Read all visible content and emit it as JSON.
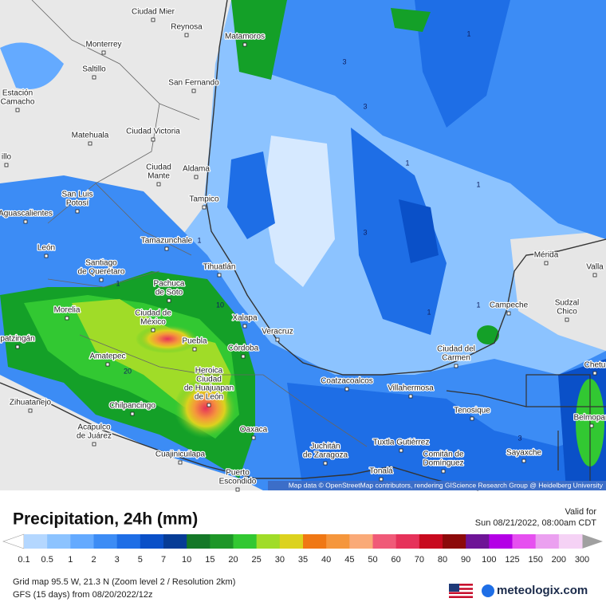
{
  "map": {
    "attribution": "Map data © OpenStreetMap contributors, rendering GIScience Research Group @ Heidelberg University",
    "cities": [
      [
        "Ciudad Mier"
      ],
      [
        "Reynosa"
      ],
      [
        "Matamoros"
      ],
      [
        "Monterrey"
      ],
      [
        "Saltillo"
      ],
      [
        "San Fernando"
      ],
      [
        "Estación",
        "Camacho"
      ],
      [
        "Matehuala"
      ],
      [
        "Ciudad Victoria"
      ],
      [
        "Ciudad",
        "Mante"
      ],
      [
        "Aldama"
      ],
      [
        "illo"
      ],
      [
        "San Luis",
        "Potosí"
      ],
      [
        "Tampico"
      ],
      [
        "Aguascalientes"
      ],
      [
        "Tamazunchale"
      ],
      [
        "León"
      ],
      [
        "Santiago",
        "de Querétaro"
      ],
      [
        "Tihuatlán"
      ],
      [
        "Pachuca",
        "de Soto"
      ],
      [
        "Mérida"
      ],
      [
        "Valla"
      ],
      [
        "Campeche"
      ],
      [
        "Sudzal",
        "Chico"
      ],
      [
        "Morelia"
      ],
      [
        "Ciudad de",
        "México"
      ],
      [
        "Xalapa"
      ],
      [
        "Veracruz"
      ],
      [
        "patzingán"
      ],
      [
        "Puebla"
      ],
      [
        "Córdoba"
      ],
      [
        "Amatepec"
      ],
      [
        "Ciudad del",
        "Carmen"
      ],
      [
        "Heroica",
        "Ciudad",
        "de Huajuapan",
        "de León"
      ],
      [
        "Coatzacoalcos"
      ],
      [
        "Villahermosa"
      ],
      [
        "Chetu"
      ],
      [
        "Zihuatanejo"
      ],
      [
        "Chilpancingo"
      ],
      [
        "Tenosique"
      ],
      [
        "Belmopan"
      ],
      [
        "Acapulco",
        "de Juárez"
      ],
      [
        "Oaxaca"
      ],
      [
        "Juchitán",
        "de Zaragoza"
      ],
      [
        "Tuxtla Gutiérrez"
      ],
      [
        "Comitán de",
        "Domínguez"
      ],
      [
        "Sayaxche"
      ],
      [
        "Cuajinicuilapa"
      ],
      [
        "Tonalá"
      ],
      [
        "Puerto",
        "Escondido"
      ]
    ],
    "contour_labels": [
      "1",
      "3",
      "3",
      "1",
      "1",
      "3",
      "1",
      "1",
      "1",
      "10",
      "20",
      "1",
      "3"
    ]
  },
  "panel": {
    "title": "Precipitation, 24h (mm)",
    "valid_label": "Valid for",
    "valid_time": "Sun 08/21/2022, 08:00am CDT",
    "grid_info": "Grid map 95.5 W, 21.3 N (Zoom level 2 / Resolution 2km)",
    "model_info": "GFS (15 days) from 08/20/2022/12z",
    "brand": "meteologix.com"
  },
  "legend": {
    "labels": [
      "0.1",
      "0.5",
      "1",
      "2",
      "3",
      "5",
      "7",
      "10",
      "15",
      "20",
      "25",
      "30",
      "35",
      "40",
      "45",
      "50",
      "60",
      "70",
      "80",
      "90",
      "100",
      "125",
      "150",
      "200",
      "300"
    ],
    "colors": [
      "#b4d7ff",
      "#8cc3ff",
      "#64aaff",
      "#3c8cf5",
      "#1e6ee6",
      "#0a50c8",
      "#063c96",
      "#147828",
      "#1e9628",
      "#32c832",
      "#a0dc28",
      "#dcd21e",
      "#f07814",
      "#f5963c",
      "#faaa78",
      "#f05a78",
      "#e6325a",
      "#c80a1e",
      "#8c0a0a",
      "#6e1496",
      "#b400e6",
      "#e650f0",
      "#eba0f0",
      "#f5d2f5"
    ],
    "below_color": "#ffffff",
    "above_color": "#a0a0a0"
  }
}
